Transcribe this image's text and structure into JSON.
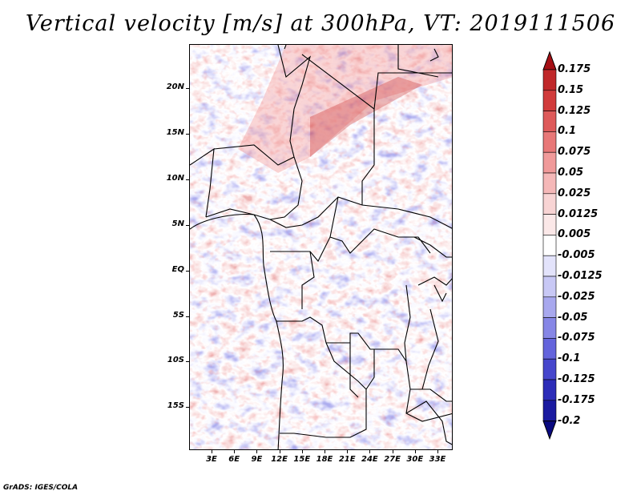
{
  "title": "Vertical velocity [m/s] at 300hPa, VT: 2019111506",
  "credit": "GrADS: IGES/COLA",
  "lat_labels": [
    "20N",
    "15N",
    "10N",
    "5N",
    "EQ",
    "5S",
    "10S",
    "15S"
  ],
  "lon_labels": [
    "3E",
    "6E",
    "9E",
    "12E",
    "15E",
    "18E",
    "21E",
    "24E",
    "27E",
    "30E",
    "33E"
  ],
  "colorbar": {
    "levels": [
      "0.175",
      "0.15",
      "0.125",
      "0.1",
      "0.075",
      "0.05",
      "0.025",
      "0.0125",
      "0.005",
      "-0.005",
      "-0.0125",
      "-0.025",
      "-0.05",
      "-0.075",
      "-0.1",
      "-0.125",
      "-0.175",
      "-0.2"
    ],
    "colors": [
      "#a50f15",
      "#c0282a",
      "#d13b3b",
      "#de5a5a",
      "#e87878",
      "#f09a9a",
      "#f5b8b8",
      "#f8d4d4",
      "#fbe8e8",
      "#ffffff",
      "#e3e3fb",
      "#c8c8f5",
      "#a8a8ee",
      "#8686e6",
      "#6464dc",
      "#4646cc",
      "#2c2cb8",
      "#1a1aa0",
      "#0a0a80"
    ]
  }
}
